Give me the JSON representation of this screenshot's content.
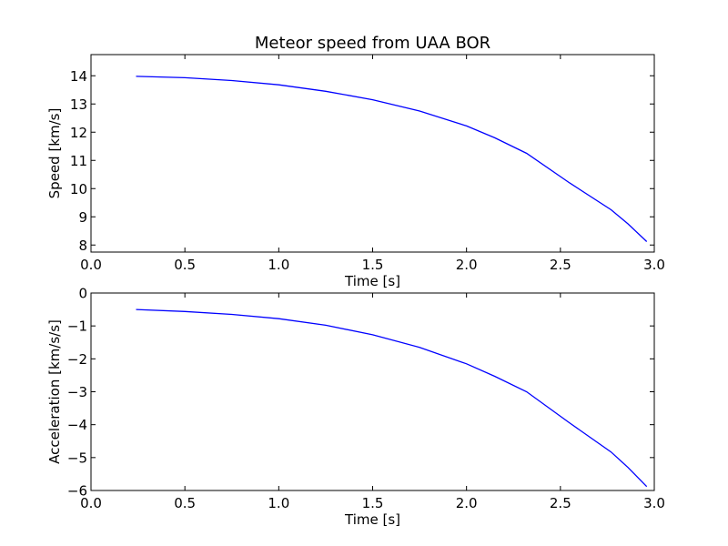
{
  "chart_data": [
    {
      "type": "line",
      "title": "Meteor speed from  UAA BOR",
      "xlabel": "Time [s]",
      "ylabel": "Speed [km/s]",
      "xlim": [
        0.0,
        3.0
      ],
      "ylim": [
        7.75,
        14.75
      ],
      "xticks": [
        "0.0",
        "0.5",
        "1.0",
        "1.5",
        "2.0",
        "2.5",
        "3.0"
      ],
      "yticks": [
        "8",
        "9",
        "10",
        "11",
        "12",
        "13",
        "14"
      ],
      "grid": false,
      "series": [
        {
          "color": "#0000ff",
          "x": [
            0.24,
            0.5,
            0.75,
            1.0,
            1.25,
            1.5,
            1.75,
            2.0,
            2.15,
            2.32,
            2.55,
            2.77,
            2.86,
            2.96
          ],
          "y": [
            13.98,
            13.93,
            13.83,
            13.68,
            13.45,
            13.15,
            12.75,
            12.22,
            11.8,
            11.25,
            10.2,
            9.25,
            8.75,
            8.12
          ]
        }
      ]
    },
    {
      "type": "line",
      "title": "",
      "xlabel": "Time [s]",
      "ylabel": "Acceleration [km/s/s]",
      "xlim": [
        0.0,
        3.0
      ],
      "ylim": [
        -6.0,
        0.0
      ],
      "xticks": [
        "0.0",
        "0.5",
        "1.0",
        "1.5",
        "2.0",
        "2.5",
        "3.0"
      ],
      "yticks": [
        "0",
        "−1",
        "−2",
        "−3",
        "−4",
        "−5",
        "−6"
      ],
      "grid": false,
      "series": [
        {
          "color": "#0000ff",
          "x": [
            0.24,
            0.5,
            0.75,
            1.0,
            1.25,
            1.5,
            1.75,
            2.0,
            2.15,
            2.32,
            2.55,
            2.77,
            2.86,
            2.96
          ],
          "y": [
            -0.5,
            -0.56,
            -0.65,
            -0.78,
            -0.98,
            -1.27,
            -1.65,
            -2.15,
            -2.53,
            -3.0,
            -3.95,
            -4.83,
            -5.3,
            -5.88
          ]
        }
      ]
    }
  ]
}
